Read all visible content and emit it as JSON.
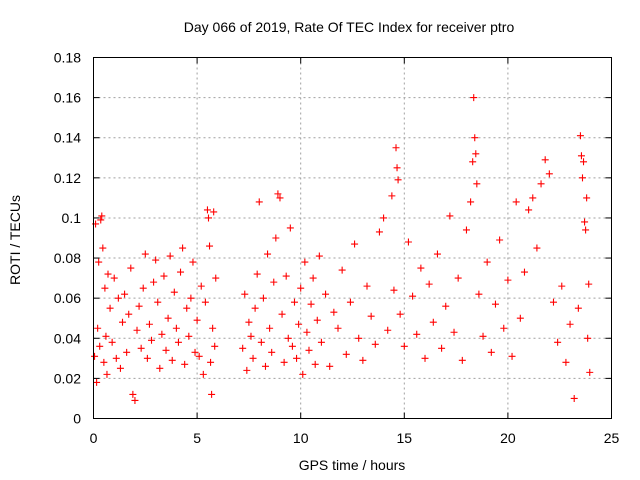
{
  "chart_data": {
    "type": "scatter",
    "title": "Day 066 of 2019, Rate Of TEC Index for receiver ptro",
    "xlabel": "GPS time / hours",
    "ylabel": "ROTI / TECUs",
    "xlim": [
      0,
      25
    ],
    "ylim": [
      0,
      0.18
    ],
    "xticks": [
      0,
      5,
      10,
      15,
      20,
      25
    ],
    "xtick_labels": [
      "0",
      "5",
      "10",
      "15",
      "20",
      "25"
    ],
    "yticks": [
      0,
      0.02,
      0.04,
      0.06,
      0.08,
      0.1,
      0.12,
      0.14,
      0.16,
      0.18
    ],
    "ytick_labels": [
      "0",
      "0.02",
      "0.04",
      "0.06",
      "0.08",
      "0.1",
      "0.12",
      "0.14",
      "0.16",
      "0.18"
    ],
    "grid": true,
    "marker": "+",
    "color": "#ff0000",
    "series": [
      {
        "name": "ROTI",
        "points": [
          [
            0.05,
            0.031
          ],
          [
            0.1,
            0.097
          ],
          [
            0.15,
            0.018
          ],
          [
            0.2,
            0.045
          ],
          [
            0.25,
            0.078
          ],
          [
            0.3,
            0.036
          ],
          [
            0.35,
            0.099
          ],
          [
            0.4,
            0.101
          ],
          [
            0.45,
            0.085
          ],
          [
            0.5,
            0.028
          ],
          [
            0.55,
            0.065
          ],
          [
            0.6,
            0.041
          ],
          [
            0.65,
            0.022
          ],
          [
            0.7,
            0.072
          ],
          [
            0.8,
            0.055
          ],
          [
            0.9,
            0.038
          ],
          [
            1.0,
            0.07
          ],
          [
            1.1,
            0.03
          ],
          [
            1.2,
            0.06
          ],
          [
            1.3,
            0.025
          ],
          [
            1.4,
            0.048
          ],
          [
            1.5,
            0.062
          ],
          [
            1.6,
            0.033
          ],
          [
            1.7,
            0.052
          ],
          [
            1.8,
            0.075
          ],
          [
            1.9,
            0.012
          ],
          [
            2.0,
            0.009
          ],
          [
            2.1,
            0.044
          ],
          [
            2.2,
            0.056
          ],
          [
            2.3,
            0.035
          ],
          [
            2.4,
            0.065
          ],
          [
            2.5,
            0.082
          ],
          [
            2.6,
            0.03
          ],
          [
            2.7,
            0.047
          ],
          [
            2.8,
            0.039
          ],
          [
            2.9,
            0.068
          ],
          [
            3.0,
            0.079
          ],
          [
            3.1,
            0.058
          ],
          [
            3.2,
            0.025
          ],
          [
            3.3,
            0.042
          ],
          [
            3.4,
            0.071
          ],
          [
            3.5,
            0.034
          ],
          [
            3.6,
            0.05
          ],
          [
            3.7,
            0.081
          ],
          [
            3.8,
            0.029
          ],
          [
            3.9,
            0.063
          ],
          [
            4.0,
            0.045
          ],
          [
            4.1,
            0.038
          ],
          [
            4.2,
            0.073
          ],
          [
            4.3,
            0.085
          ],
          [
            4.4,
            0.027
          ],
          [
            4.5,
            0.055
          ],
          [
            4.6,
            0.041
          ],
          [
            4.7,
            0.06
          ],
          [
            4.8,
            0.078
          ],
          [
            4.9,
            0.033
          ],
          [
            5.0,
            0.049
          ],
          [
            5.1,
            0.031
          ],
          [
            5.2,
            0.066
          ],
          [
            5.3,
            0.022
          ],
          [
            5.4,
            0.058
          ],
          [
            5.5,
            0.104
          ],
          [
            5.55,
            0.1
          ],
          [
            5.6,
            0.086
          ],
          [
            5.65,
            0.028
          ],
          [
            5.7,
            0.012
          ],
          [
            5.75,
            0.045
          ],
          [
            5.8,
            0.103
          ],
          [
            5.85,
            0.036
          ],
          [
            5.9,
            0.07
          ],
          [
            7.2,
            0.035
          ],
          [
            7.3,
            0.062
          ],
          [
            7.4,
            0.024
          ],
          [
            7.5,
            0.048
          ],
          [
            7.6,
            0.041
          ],
          [
            7.7,
            0.03
          ],
          [
            7.8,
            0.055
          ],
          [
            7.9,
            0.072
          ],
          [
            8.0,
            0.108
          ],
          [
            8.1,
            0.038
          ],
          [
            8.2,
            0.06
          ],
          [
            8.3,
            0.026
          ],
          [
            8.4,
            0.082
          ],
          [
            8.5,
            0.045
          ],
          [
            8.6,
            0.033
          ],
          [
            8.7,
            0.068
          ],
          [
            8.8,
            0.09
          ],
          [
            8.9,
            0.112
          ],
          [
            9.0,
            0.11
          ],
          [
            9.1,
            0.052
          ],
          [
            9.2,
            0.028
          ],
          [
            9.3,
            0.071
          ],
          [
            9.4,
            0.04
          ],
          [
            9.5,
            0.095
          ],
          [
            9.6,
            0.036
          ],
          [
            9.7,
            0.058
          ],
          [
            9.8,
            0.03
          ],
          [
            9.9,
            0.047
          ],
          [
            10.0,
            0.065
          ],
          [
            10.1,
            0.022
          ],
          [
            10.2,
            0.078
          ],
          [
            10.3,
            0.043
          ],
          [
            10.4,
            0.034
          ],
          [
            10.5,
            0.057
          ],
          [
            10.6,
            0.07
          ],
          [
            10.7,
            0.027
          ],
          [
            10.8,
            0.049
          ],
          [
            10.9,
            0.081
          ],
          [
            11.0,
            0.038
          ],
          [
            11.2,
            0.062
          ],
          [
            11.4,
            0.026
          ],
          [
            11.6,
            0.053
          ],
          [
            11.8,
            0.045
          ],
          [
            12.0,
            0.074
          ],
          [
            12.2,
            0.032
          ],
          [
            12.4,
            0.058
          ],
          [
            12.6,
            0.087
          ],
          [
            12.8,
            0.04
          ],
          [
            13.0,
            0.029
          ],
          [
            13.2,
            0.066
          ],
          [
            13.4,
            0.051
          ],
          [
            13.6,
            0.037
          ],
          [
            13.8,
            0.093
          ],
          [
            14.0,
            0.1
          ],
          [
            14.2,
            0.044
          ],
          [
            14.4,
            0.111
          ],
          [
            14.5,
            0.064
          ],
          [
            14.6,
            0.135
          ],
          [
            14.65,
            0.125
          ],
          [
            14.7,
            0.119
          ],
          [
            14.8,
            0.052
          ],
          [
            15.0,
            0.036
          ],
          [
            15.2,
            0.088
          ],
          [
            15.4,
            0.061
          ],
          [
            15.6,
            0.042
          ],
          [
            15.8,
            0.075
          ],
          [
            16.0,
            0.03
          ],
          [
            16.2,
            0.067
          ],
          [
            16.4,
            0.048
          ],
          [
            16.6,
            0.082
          ],
          [
            16.8,
            0.035
          ],
          [
            17.0,
            0.056
          ],
          [
            17.2,
            0.101
          ],
          [
            17.4,
            0.043
          ],
          [
            17.6,
            0.07
          ],
          [
            17.8,
            0.029
          ],
          [
            18.0,
            0.094
          ],
          [
            18.2,
            0.108
          ],
          [
            18.3,
            0.128
          ],
          [
            18.35,
            0.16
          ],
          [
            18.4,
            0.14
          ],
          [
            18.45,
            0.132
          ],
          [
            18.5,
            0.117
          ],
          [
            18.6,
            0.062
          ],
          [
            18.8,
            0.041
          ],
          [
            19.0,
            0.078
          ],
          [
            19.2,
            0.033
          ],
          [
            19.4,
            0.057
          ],
          [
            19.6,
            0.089
          ],
          [
            19.8,
            0.045
          ],
          [
            20.0,
            0.069
          ],
          [
            20.2,
            0.031
          ],
          [
            20.4,
            0.108
          ],
          [
            20.6,
            0.05
          ],
          [
            20.8,
            0.073
          ],
          [
            21.0,
            0.104
          ],
          [
            21.2,
            0.11
          ],
          [
            21.4,
            0.085
          ],
          [
            21.6,
            0.117
          ],
          [
            21.8,
            0.129
          ],
          [
            22.0,
            0.122
          ],
          [
            22.2,
            0.058
          ],
          [
            22.4,
            0.038
          ],
          [
            22.6,
            0.066
          ],
          [
            22.8,
            0.028
          ],
          [
            23.0,
            0.047
          ],
          [
            23.2,
            0.01
          ],
          [
            23.4,
            0.055
          ],
          [
            23.5,
            0.141
          ],
          [
            23.55,
            0.131
          ],
          [
            23.6,
            0.12
          ],
          [
            23.65,
            0.128
          ],
          [
            23.7,
            0.098
          ],
          [
            23.75,
            0.094
          ],
          [
            23.8,
            0.11
          ],
          [
            23.85,
            0.04
          ],
          [
            23.9,
            0.067
          ],
          [
            23.95,
            0.023
          ]
        ]
      }
    ]
  }
}
